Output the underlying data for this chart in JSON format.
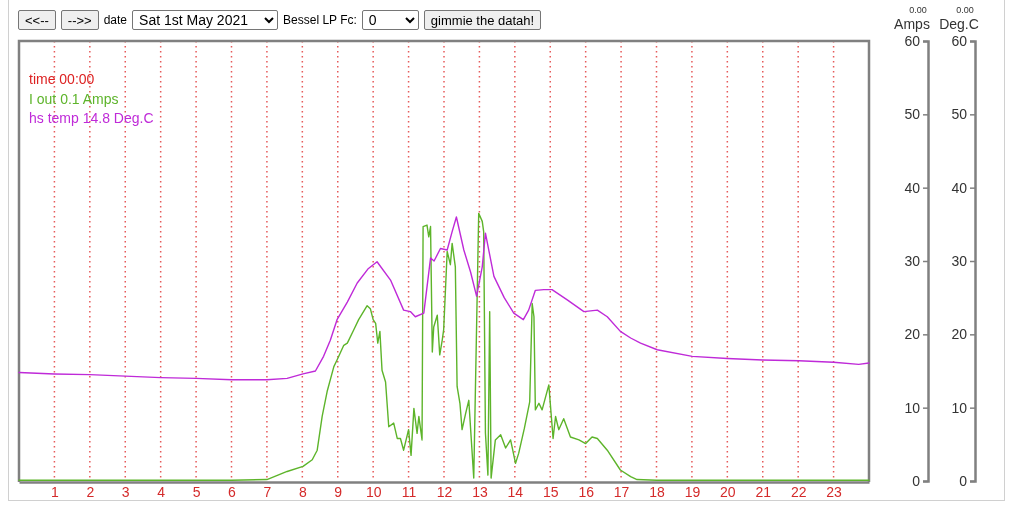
{
  "chart_data": {
    "type": "line",
    "xlim": [
      0,
      24
    ],
    "xticks": [
      1,
      2,
      3,
      4,
      5,
      6,
      7,
      8,
      9,
      10,
      11,
      12,
      13,
      14,
      15,
      16,
      17,
      18,
      19,
      20,
      21,
      22,
      23
    ],
    "ylim": [
      0,
      60
    ],
    "yticks": [
      0,
      10,
      20,
      30,
      40,
      50,
      60
    ],
    "y2lim": [
      0,
      60
    ],
    "y2ticks": [
      0,
      10,
      20,
      30,
      40,
      50,
      60
    ],
    "ylabel": "Amps",
    "y2label": "Deg.C",
    "grid": "x",
    "legend": "top left",
    "marker": "none",
    "line_style": "solid",
    "annotations": [
      "<<--",
      "-->>",
      "date",
      "Sat 1st May 2021",
      "Bessel LP Fc:",
      "0",
      "gimmie the datah!",
      "time 00:00",
      "0.00",
      "0.00"
    ],
    "series": [
      {
        "name": "I out 0.1 Amps",
        "color": "#5db42a",
        "x": [
          0,
          1,
          2,
          3,
          4,
          5,
          6,
          7.0,
          7.57,
          8.02,
          8.28,
          8.42,
          8.56,
          8.7,
          8.89,
          8.98,
          9.17,
          9.27,
          9.45,
          9.59,
          9.83,
          9.92,
          10.0,
          10.07,
          10.13,
          10.19,
          10.25,
          10.35,
          10.44,
          10.58,
          10.68,
          10.77,
          10.86,
          11.0,
          11.07,
          11.15,
          11.24,
          11.29,
          11.38,
          11.41,
          11.52,
          11.57,
          11.62,
          11.67,
          11.71,
          11.81,
          11.88,
          11.95,
          11.99,
          12.09,
          12.18,
          12.23,
          12.32,
          12.37,
          12.45,
          12.51,
          12.61,
          12.7,
          12.84,
          12.98,
          13.08,
          13.12,
          13.17,
          13.24,
          13.29,
          13.33,
          13.45,
          13.6,
          13.74,
          13.88,
          14.02,
          14.11,
          14.27,
          14.42,
          14.49,
          14.54,
          14.58,
          14.68,
          14.77,
          14.96,
          15.08,
          15.15,
          15.24,
          15.38,
          15.57,
          15.81,
          16.0,
          16.18,
          16.33,
          16.61,
          16.98,
          17.27,
          17.45,
          18,
          20,
          22,
          24
        ],
        "values": [
          0.1,
          0.1,
          0.1,
          0.1,
          0.1,
          0.1,
          0.1,
          0.2,
          1.3,
          2.0,
          2.9,
          4.2,
          8.8,
          12.2,
          15.6,
          16.5,
          18.5,
          18.8,
          20.6,
          22.0,
          23.9,
          23.5,
          22.0,
          21.5,
          18.8,
          20.4,
          15.1,
          13.5,
          7.4,
          7.9,
          5.8,
          5.8,
          4.2,
          7.0,
          3.5,
          9.9,
          6.5,
          8.8,
          5.6,
          34.7,
          34.9,
          33.3,
          34.7,
          17.6,
          21.0,
          22.6,
          17.2,
          19.2,
          20.6,
          31.3,
          29.5,
          32.4,
          29.2,
          12.9,
          10.6,
          7.0,
          9.2,
          11.0,
          0.4,
          36.5,
          35.4,
          34.0,
          6.5,
          0.8,
          23.1,
          0.4,
          5.6,
          6.3,
          4.5,
          5.6,
          2.4,
          3.8,
          7.2,
          10.8,
          24.2,
          22.4,
          9.7,
          10.6,
          9.7,
          13.1,
          5.8,
          8.8,
          7.0,
          8.5,
          6.0,
          5.6,
          5.1,
          6.0,
          5.8,
          4.2,
          1.5,
          0.6,
          0.2,
          0.1,
          0.1,
          0.1,
          0.1
        ]
      },
      {
        "name": "hs temp 14.8 Deg.C",
        "color": "#bf2ad8",
        "axis": "y2",
        "x": [
          0,
          1,
          2,
          3,
          4,
          5,
          6,
          7,
          7.57,
          8.02,
          8.37,
          8.6,
          8.79,
          8.98,
          9.27,
          9.55,
          9.85,
          10.11,
          10.49,
          10.86,
          11.05,
          11.19,
          11.43,
          11.62,
          11.72,
          11.9,
          12.09,
          12.23,
          12.35,
          12.56,
          12.75,
          12.92,
          13.08,
          13.17,
          13.41,
          13.7,
          13.97,
          14.24,
          14.39,
          14.58,
          14.82,
          15.05,
          15.48,
          15.95,
          16.33,
          16.61,
          16.98,
          17.27,
          17.55,
          18.02,
          19.01,
          20.0,
          20.99,
          22.02,
          23.0,
          23.71,
          24
        ],
        "values": [
          14.8,
          14.6,
          14.5,
          14.3,
          14.1,
          14.0,
          13.8,
          13.8,
          14.0,
          14.6,
          15.0,
          17.0,
          19.2,
          22.0,
          24.4,
          27.0,
          28.9,
          29.9,
          27.4,
          23.3,
          23.1,
          22.4,
          22.9,
          30.4,
          30.0,
          31.7,
          31.5,
          34.0,
          36.0,
          31.5,
          28.5,
          25.2,
          29.2,
          33.8,
          27.9,
          25.0,
          22.9,
          22.0,
          23.3,
          26.0,
          26.1,
          26.1,
          24.7,
          23.1,
          23.3,
          22.4,
          20.4,
          19.5,
          18.8,
          17.9,
          17.0,
          16.7,
          16.5,
          16.4,
          16.2,
          15.9,
          16.1
        ]
      }
    ]
  }
}
